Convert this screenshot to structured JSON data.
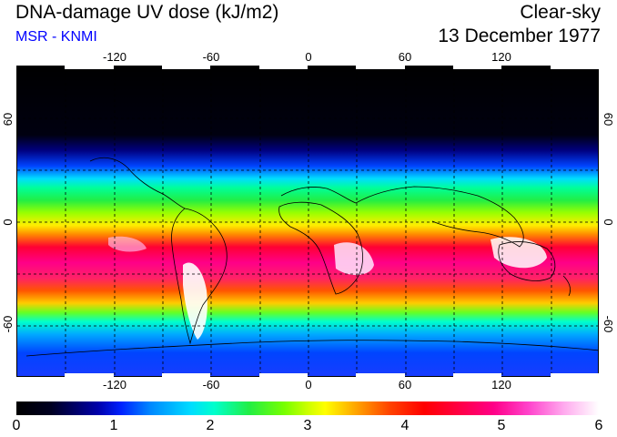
{
  "header": {
    "title": "DNA-damage UV dose (kJ/m2)",
    "source": "MSR - KNMI",
    "sky_condition": "Clear-sky",
    "date": "13 December 1977"
  },
  "map": {
    "longitude_ticks": [
      "-120",
      "-60",
      "0",
      "60",
      "120"
    ],
    "latitude_ticks": [
      "60",
      "0",
      "-60"
    ],
    "projection": "equirectangular",
    "gridlines": "dashed every 30 degrees",
    "colors": {
      "background_band": "#000000",
      "coastline": "#000000",
      "gridline": "#000000"
    }
  },
  "colorbar": {
    "min": 0,
    "max": 6,
    "tick_labels": [
      "0",
      "1",
      "2",
      "3",
      "4",
      "5",
      "6"
    ],
    "colors": [
      "#000000",
      "#0000aa",
      "#00ddff",
      "#22ee44",
      "#ffff00",
      "#ff0000",
      "#ff0088",
      "#ffffff"
    ]
  }
}
